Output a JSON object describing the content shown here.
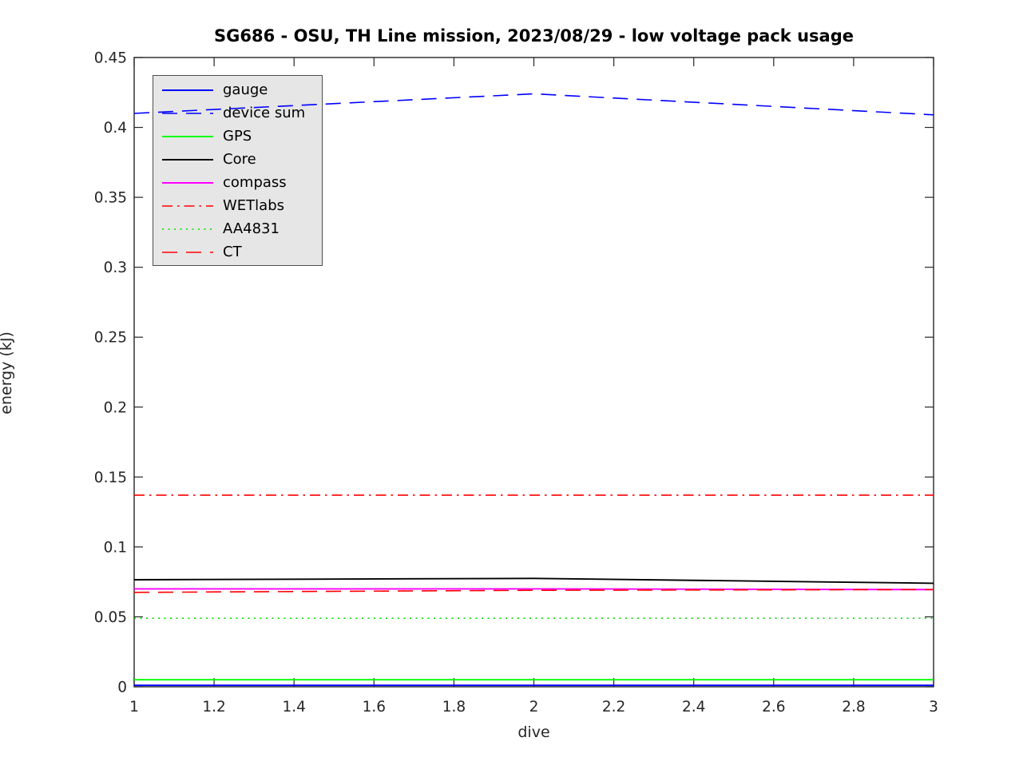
{
  "accent_colors": {
    "axis": "#262626",
    "legend_background": "#e6e6e6",
    "legend_border": "#4d4d4d",
    "figure_background": "#ffffff"
  },
  "chart_data": {
    "type": "line",
    "title": "SG686 - OSU, TH Line mission, 2023/08/29 - low voltage pack usage",
    "xlabel": "dive",
    "ylabel": "energy (kJ)",
    "xlim": [
      1,
      3
    ],
    "ylim": [
      0,
      0.45
    ],
    "grid": false,
    "box": true,
    "tick_direction": "in",
    "legend_position": "top-left",
    "x_ticks": [
      1,
      1.2,
      1.4,
      1.6,
      1.8,
      2,
      2.2,
      2.4,
      2.6,
      2.8,
      3
    ],
    "x_tick_labels": [
      "1",
      "1.2",
      "1.4",
      "1.6",
      "1.8",
      "2",
      "2.2",
      "2.4",
      "2.6",
      "2.8",
      "3"
    ],
    "y_ticks": [
      0,
      0.05,
      0.1,
      0.15,
      0.2,
      0.25,
      0.3,
      0.35,
      0.4,
      0.45
    ],
    "y_tick_labels": [
      "0",
      "0.05",
      "0.1",
      "0.15",
      "0.2",
      "0.25",
      "0.3",
      "0.35",
      "0.4",
      "0.45"
    ],
    "x": [
      1,
      2,
      3
    ],
    "series": [
      {
        "name": "gauge",
        "color": "#0000ff",
        "style": "solid",
        "values": [
          0.001,
          0.001,
          0.001
        ]
      },
      {
        "name": "device sum",
        "color": "#0000ff",
        "style": "dashed",
        "values": [
          0.41,
          0.424,
          0.409
        ]
      },
      {
        "name": "GPS",
        "color": "#00ff00",
        "style": "solid",
        "values": [
          0.005,
          0.005,
          0.005
        ]
      },
      {
        "name": "Core",
        "color": "#000000",
        "style": "solid",
        "values": [
          0.0765,
          0.0775,
          0.074
        ]
      },
      {
        "name": "compass",
        "color": "#ff00ff",
        "style": "solid",
        "values": [
          0.07,
          0.07,
          0.0695
        ]
      },
      {
        "name": "WETlabs",
        "color": "#ff0000",
        "style": "dashdot",
        "values": [
          0.137,
          0.137,
          0.137
        ]
      },
      {
        "name": "AA4831",
        "color": "#00dd00",
        "style": "dotted",
        "values": [
          0.049,
          0.049,
          0.049
        ]
      },
      {
        "name": "CT",
        "color": "#ff0000",
        "style": "dashed",
        "values": [
          0.0675,
          0.069,
          0.0695
        ]
      }
    ]
  }
}
